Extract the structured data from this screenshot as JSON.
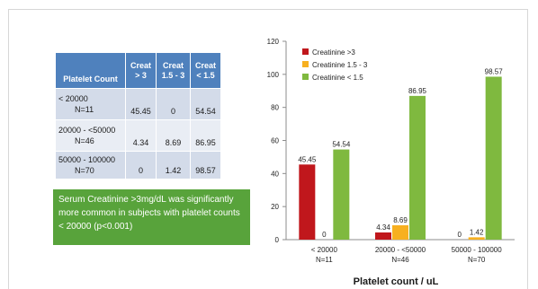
{
  "table": {
    "headers": [
      "Platelet Count",
      "Creat > 3",
      "Creat 1.5 - 3",
      "Creat < 1.5"
    ],
    "header_lines": [
      [
        "Platelet Count"
      ],
      [
        "Creat",
        "> 3"
      ],
      [
        "Creat",
        "1.5 - 3"
      ],
      [
        "Creat",
        "< 1.5"
      ]
    ],
    "rows": [
      {
        "label": "< 20000",
        "n": "N=11",
        "values": [
          "45.45",
          "0",
          "54.54"
        ]
      },
      {
        "label": "20000 - <50000",
        "n": "N=46",
        "values": [
          "4.34",
          "8.69",
          "86.95"
        ]
      },
      {
        "label": "50000 - 100000",
        "n": "N=70",
        "values": [
          "0",
          "1.42",
          "98.57"
        ]
      }
    ]
  },
  "note": "Serum Creatinine >3mg/dL was significantly more common in subjects with platelet counts < 20000 (p<0.001)",
  "chart_data": {
    "type": "bar",
    "categories": [
      "< 20000 N=11",
      "20000 - <50000 N=46",
      "50000 - 100000 N=70"
    ],
    "category_lines": [
      [
        "< 20000",
        "N=11"
      ],
      [
        "20000 - <50000",
        "N=46"
      ],
      [
        "50000 - 100000",
        "N=70"
      ]
    ],
    "series": [
      {
        "name": "Creatinine >3",
        "color": "#c0171c",
        "values": [
          45.45,
          4.34,
          0
        ]
      },
      {
        "name": "Creatinine 1.5 - 3",
        "color": "#f7b020",
        "values": [
          0,
          8.69,
          1.42
        ]
      },
      {
        "name": "Creatinine < 1.5",
        "color": "#7fb93f",
        "values": [
          54.54,
          86.95,
          98.57
        ]
      }
    ],
    "data_labels": [
      [
        "45.45",
        "4.34",
        "0"
      ],
      [
        "0",
        "8.69",
        "1.42"
      ],
      [
        "54.54",
        "86.95",
        "98.57"
      ]
    ],
    "ylim": [
      0,
      120
    ],
    "yticks": [
      0,
      20,
      40,
      60,
      80,
      100,
      120
    ],
    "xlabel": "Platelet count / uL",
    "ylabel": "",
    "legend_position": "top-left"
  }
}
